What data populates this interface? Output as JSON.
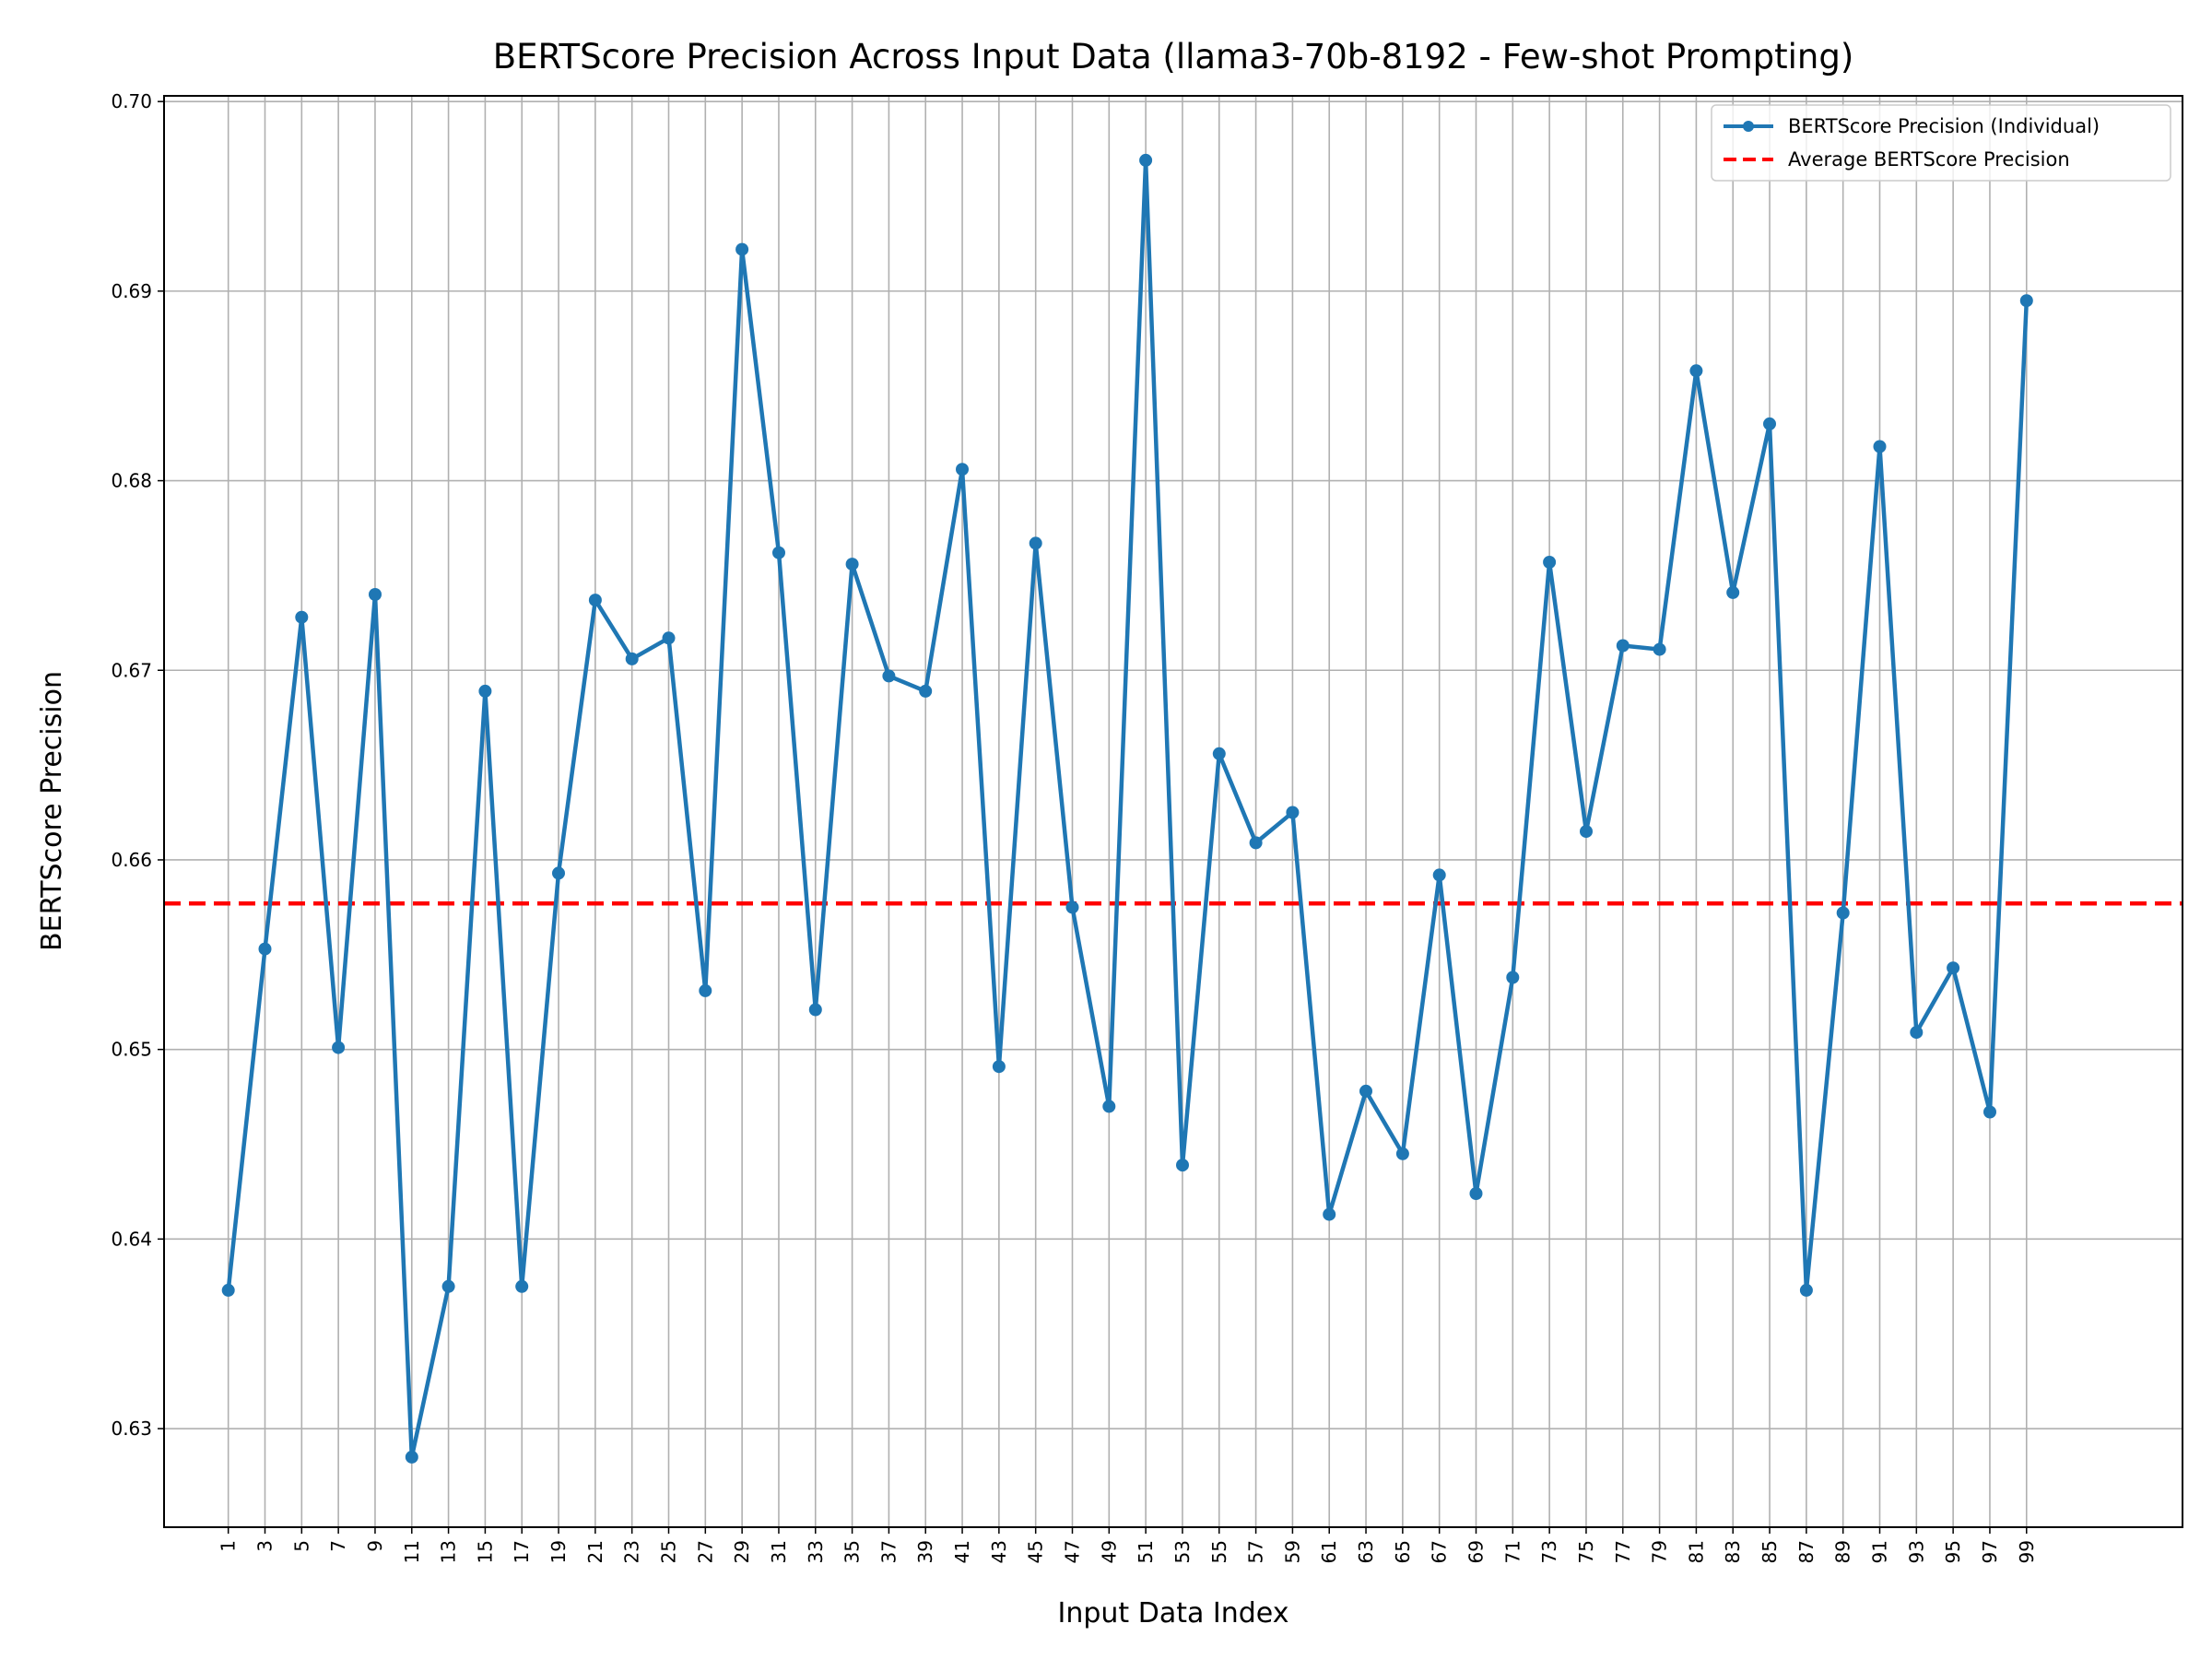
{
  "chart_data": {
    "type": "line",
    "title": "BERTScore Precision Across Input Data (llama3-70b-8192 - Few-shot Prompting)",
    "xlabel": "Input Data Index",
    "ylabel": "BERTScore Precision",
    "xlim": [
      -2.5,
      107.5
    ],
    "ylim": [
      0.6248,
      0.7003
    ],
    "x_ticks": [
      1,
      3,
      5,
      7,
      9,
      11,
      13,
      15,
      17,
      19,
      21,
      23,
      25,
      27,
      29,
      31,
      33,
      35,
      37,
      39,
      41,
      43,
      45,
      47,
      49,
      51,
      53,
      55,
      57,
      59,
      61,
      63,
      65,
      67,
      69,
      71,
      73,
      75,
      77,
      79,
      81,
      83,
      85,
      87,
      89,
      91,
      93,
      95,
      97,
      99
    ],
    "x_tick_labels": [
      "1",
      "3",
      "5",
      "7",
      "9",
      "11",
      "13",
      "15",
      "17",
      "19",
      "21",
      "23",
      "25",
      "27",
      "29",
      "31",
      "33",
      "35",
      "37",
      "39",
      "41",
      "43",
      "45",
      "47",
      "49",
      "51",
      "53",
      "55",
      "57",
      "59",
      "61",
      "63",
      "65",
      "67",
      "69",
      "71",
      "73",
      "75",
      "77",
      "79",
      "81",
      "83",
      "85",
      "87",
      "89",
      "91",
      "93",
      "95",
      "97",
      "99"
    ],
    "y_ticks": [
      0.63,
      0.64,
      0.65,
      0.66,
      0.67,
      0.68,
      0.69,
      0.7
    ],
    "y_tick_labels": [
      "0.63",
      "0.64",
      "0.65",
      "0.66",
      "0.67",
      "0.68",
      "0.69",
      "0.70"
    ],
    "grid": true,
    "legend_position": "top-right",
    "series": [
      {
        "name": "BERTScore Precision (Individual)",
        "style": "line-with-markers",
        "color": "#1f77b4",
        "x": [
          1,
          3,
          5,
          7,
          9,
          11,
          13,
          15,
          17,
          19,
          21,
          23,
          25,
          27,
          29,
          31,
          33,
          35,
          37,
          39,
          41,
          43,
          45,
          47,
          49,
          51,
          53,
          55,
          57,
          59,
          61,
          63,
          65,
          67,
          69,
          71,
          73,
          75,
          77,
          79,
          81,
          83,
          85,
          87,
          89,
          91,
          93,
          95,
          97,
          99
        ],
        "values": [
          0.6373,
          0.6553,
          0.6728,
          0.6501,
          0.674,
          0.6285,
          0.6375,
          0.6689,
          0.6375,
          0.6593,
          0.6737,
          0.6706,
          0.6717,
          0.6531,
          0.6922,
          0.6762,
          0.6521,
          0.6756,
          0.6697,
          0.6689,
          0.6806,
          0.6491,
          0.6767,
          0.6575,
          0.647,
          0.6969,
          0.6439,
          0.6656,
          0.6609,
          0.6625,
          0.6413,
          0.6478,
          0.6445,
          0.6592,
          0.6424,
          0.6538,
          0.6757,
          0.6615,
          0.6713,
          0.6711,
          0.6858,
          0.6741,
          0.683,
          0.6373,
          0.6572,
          0.6818,
          0.6509,
          0.6543,
          0.6467,
          0.6895
        ]
      },
      {
        "name": "Average BERTScore Precision",
        "style": "dashed-horizontal",
        "color": "#ff0000",
        "value": 0.6577
      }
    ]
  }
}
